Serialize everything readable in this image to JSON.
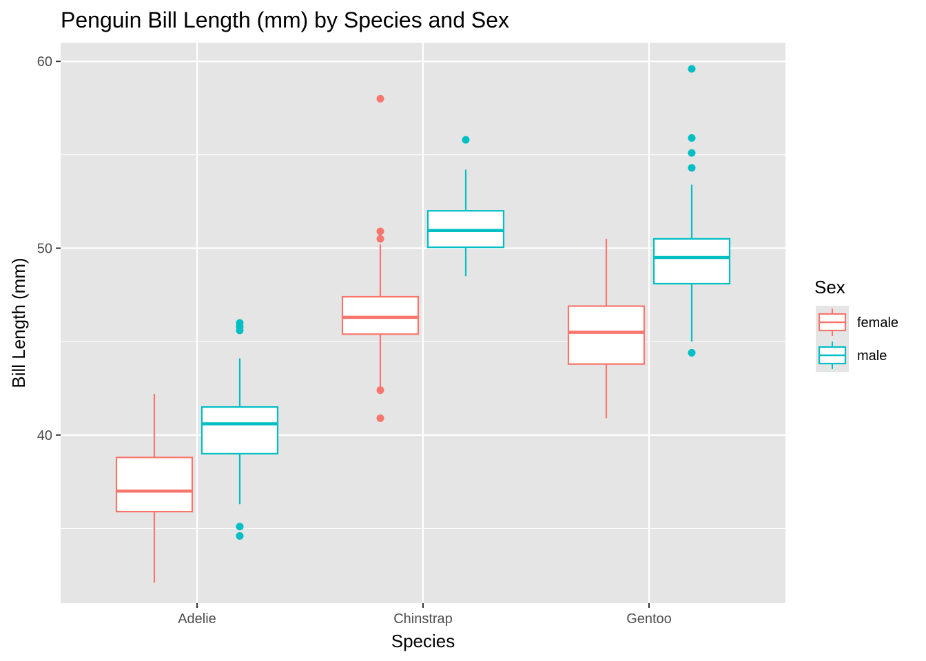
{
  "chart_data": {
    "type": "box",
    "title": "Penguin Bill Length (mm) by Species and Sex",
    "xlabel": "Species",
    "ylabel": "Bill Length (mm)",
    "categories": [
      "Adelie",
      "Chinstrap",
      "Gentoo"
    ],
    "ylim": [
      31.0,
      61.0
    ],
    "yticks": [
      40,
      50,
      60
    ],
    "grid": true,
    "legend": {
      "title": "Sex",
      "position": "right"
    },
    "series": [
      {
        "name": "female",
        "color": "#F8766D",
        "boxes": [
          {
            "category": "Adelie",
            "whisker_low": 32.1,
            "q1": 35.9,
            "median": 37.0,
            "q3": 38.8,
            "whisker_high": 42.2,
            "outliers": []
          },
          {
            "category": "Chinstrap",
            "whisker_low": 42.5,
            "q1": 45.4,
            "median": 46.3,
            "q3": 47.4,
            "whisker_high": 50.2,
            "outliers": [
              40.9,
              42.4,
              50.5,
              50.9,
              58.0
            ]
          },
          {
            "category": "Gentoo",
            "whisker_low": 40.9,
            "q1": 43.8,
            "median": 45.5,
            "q3": 46.9,
            "whisker_high": 50.5,
            "outliers": []
          }
        ]
      },
      {
        "name": "male",
        "color": "#00BFC4",
        "boxes": [
          {
            "category": "Adelie",
            "whisker_low": 36.3,
            "q1": 39.0,
            "median": 40.6,
            "q3": 41.5,
            "whisker_high": 44.1,
            "outliers": [
              34.6,
              35.1,
              45.6,
              45.8,
              46.0
            ]
          },
          {
            "category": "Chinstrap",
            "whisker_low": 48.5,
            "q1": 50.05,
            "median": 50.95,
            "q3": 52.0,
            "whisker_high": 54.2,
            "outliers": [
              55.8
            ]
          },
          {
            "category": "Gentoo",
            "whisker_low": 45.0,
            "q1": 48.1,
            "median": 49.5,
            "q3": 50.5,
            "whisker_high": 53.4,
            "outliers": [
              44.4,
              54.3,
              55.1,
              55.9,
              59.6
            ]
          }
        ]
      }
    ]
  }
}
